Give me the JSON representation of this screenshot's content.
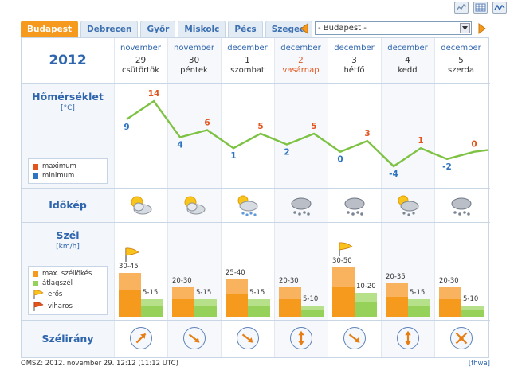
{
  "tabs": [
    "Budapest",
    "Debrecen",
    "Győr",
    "Miskolc",
    "Pécs",
    "Szeged"
  ],
  "active_tab": 0,
  "city_select": {
    "value": "- Budapest -"
  },
  "year": "2012",
  "labels": {
    "temp_title": "Hőmérséklet",
    "temp_unit": "[°C]",
    "sky_title": "Időkép",
    "wind_title": "Szél",
    "wind_unit": "[km/h]",
    "dir_title": "Szélirány"
  },
  "temp_legend": {
    "max": "maximum",
    "min": "minimum"
  },
  "wind_legend": {
    "gust": "max. széllökés",
    "avg": "átlagszél",
    "strong": "erős",
    "storm": "viharos"
  },
  "colors": {
    "max": "#e2561e",
    "min": "#2f74c0",
    "line": "#7dc242",
    "gust_light": "#f9b35f",
    "gust_dark": "#f59a1c",
    "avg": "#96d15a",
    "accent": "#f59a1c"
  },
  "days": [
    {
      "month": "november",
      "num": "29",
      "name": "csütörtök",
      "sunday": false,
      "max": "14",
      "min": "9",
      "sky": "partly-cloudy-icon",
      "gust": "30-45",
      "avg": "5-15",
      "gust_level": 0.55,
      "avg_level": 0.22,
      "warning": "strong-wind-flag-icon",
      "dir": "northeast"
    },
    {
      "month": "november",
      "num": "30",
      "name": "péntek",
      "sunday": false,
      "max": "6",
      "min": "4",
      "sky": "partly-cloudy-icon",
      "gust": "20-30",
      "avg": "5-15",
      "gust_level": 0.37,
      "avg_level": 0.22,
      "warning": "",
      "dir": "southeast"
    },
    {
      "month": "december",
      "num": "1",
      "name": "szombat",
      "sunday": false,
      "max": "5",
      "min": "1",
      "sky": "rain-icon",
      "gust": "25-40",
      "avg": "5-15",
      "gust_level": 0.47,
      "avg_level": 0.22,
      "warning": "",
      "dir": "southeast"
    },
    {
      "month": "december",
      "num": "2",
      "name": "vasárnap",
      "sunday": true,
      "max": "5",
      "min": "2",
      "sky": "snow-cloud-icon",
      "gust": "20-30",
      "avg": "5-10",
      "gust_level": 0.37,
      "avg_level": 0.14,
      "warning": "",
      "dir": "north-south"
    },
    {
      "month": "december",
      "num": "3",
      "name": "hétfő",
      "sunday": false,
      "max": "3",
      "min": "0",
      "sky": "snow-cloud-icon",
      "gust": "30-50",
      "avg": "10-20",
      "gust_level": 0.62,
      "avg_level": 0.3,
      "warning": "strong-wind-flag-icon",
      "dir": "southeast"
    },
    {
      "month": "december",
      "num": "4",
      "name": "kedd",
      "sunday": false,
      "max": "1",
      "min": "-4",
      "sky": "partly-cloudy-snow-icon",
      "gust": "20-35",
      "avg": "5-15",
      "gust_level": 0.42,
      "avg_level": 0.22,
      "warning": "",
      "dir": "north-south"
    },
    {
      "month": "december",
      "num": "5",
      "name": "szerda",
      "sunday": false,
      "max": "0",
      "min": "-2",
      "sky": "snow-cloud-icon",
      "gust": "20-30",
      "avg": "5-10",
      "gust_level": 0.37,
      "avg_level": 0.14,
      "warning": "",
      "dir": "variable"
    }
  ],
  "footer": "OMSZ: 2012. november 29. 12:12 (11:12  UTC)",
  "footer_link": "[fhwa]"
}
